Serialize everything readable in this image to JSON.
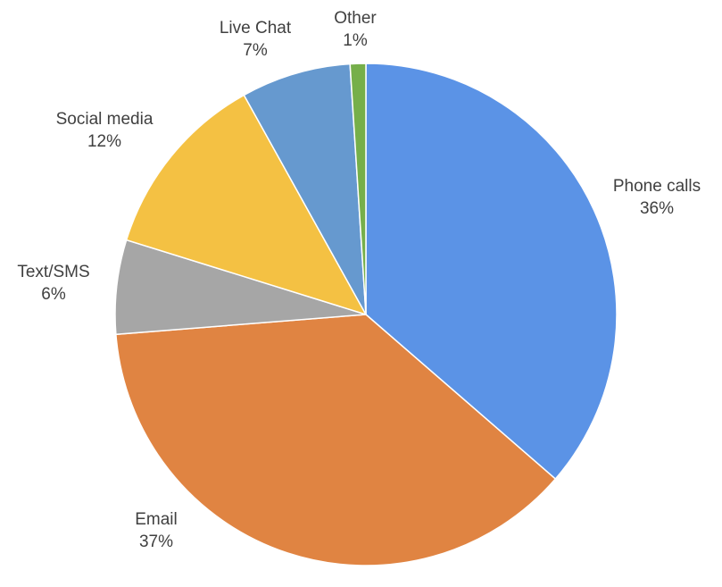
{
  "chart_data": {
    "type": "pie",
    "title": "",
    "start_angle_deg": 0,
    "direction": "clockwise",
    "legend": "none",
    "slices": [
      {
        "name": "Phone calls",
        "value": 36,
        "label": "36%",
        "color": "#5B93E6"
      },
      {
        "name": "Email",
        "value": 37,
        "label": "37%",
        "color": "#E08442"
      },
      {
        "name": "Text/SMS",
        "value": 6,
        "label": "6%",
        "color": "#A6A6A6"
      },
      {
        "name": "Social media",
        "value": 12,
        "label": "12%",
        "color": "#F4C143"
      },
      {
        "name": "Live Chat",
        "value": 7,
        "label": "7%",
        "color": "#6699CF"
      },
      {
        "name": "Other",
        "value": 1,
        "label": "1%",
        "color": "#76AF4A"
      }
    ]
  }
}
